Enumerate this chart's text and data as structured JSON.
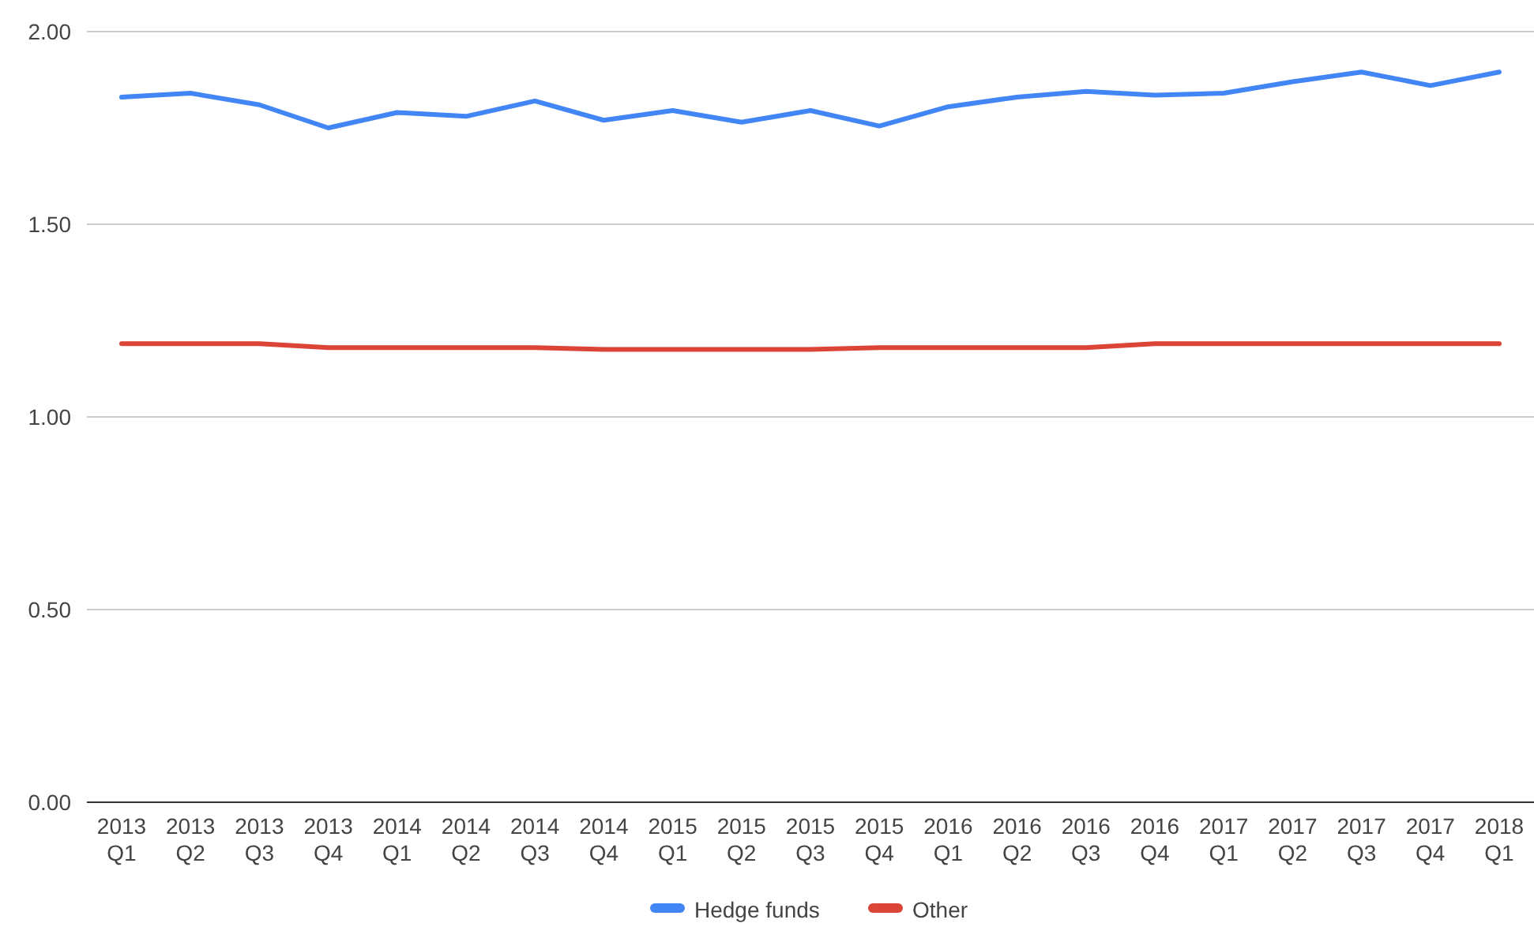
{
  "chart_data": {
    "type": "line",
    "categories": [
      "2013 Q1",
      "2013 Q2",
      "2013 Q3",
      "2013 Q4",
      "2014 Q1",
      "2014 Q2",
      "2014 Q3",
      "2014 Q4",
      "2015 Q1",
      "2015 Q2",
      "2015 Q3",
      "2015 Q4",
      "2016 Q1",
      "2016 Q2",
      "2016 Q3",
      "2016 Q4",
      "2017 Q1",
      "2017 Q2",
      "2017 Q3",
      "2017 Q4",
      "2018 Q1"
    ],
    "series": [
      {
        "name": "Hedge funds",
        "color": "#4285f4",
        "values": [
          1.83,
          1.84,
          1.81,
          1.75,
          1.79,
          1.78,
          1.82,
          1.77,
          1.795,
          1.765,
          1.795,
          1.755,
          1.805,
          1.83,
          1.845,
          1.835,
          1.84,
          1.87,
          1.895,
          1.86,
          1.895
        ]
      },
      {
        "name": "Other",
        "color": "#db4437",
        "values": [
          1.19,
          1.19,
          1.19,
          1.18,
          1.18,
          1.18,
          1.18,
          1.175,
          1.175,
          1.175,
          1.175,
          1.18,
          1.18,
          1.18,
          1.18,
          1.19,
          1.19,
          1.19,
          1.19,
          1.19,
          1.19
        ]
      }
    ],
    "ylim": [
      0,
      2
    ],
    "yticks": [
      {
        "value": 0,
        "label": "0.00"
      },
      {
        "value": 0.5,
        "label": "0.50"
      },
      {
        "value": 1,
        "label": "1.00"
      },
      {
        "value": 1.5,
        "label": "1.50"
      },
      {
        "value": 2,
        "label": "2.00"
      }
    ],
    "grid": "y",
    "legend": "bottom",
    "marker": "none",
    "line_style": "solid"
  }
}
